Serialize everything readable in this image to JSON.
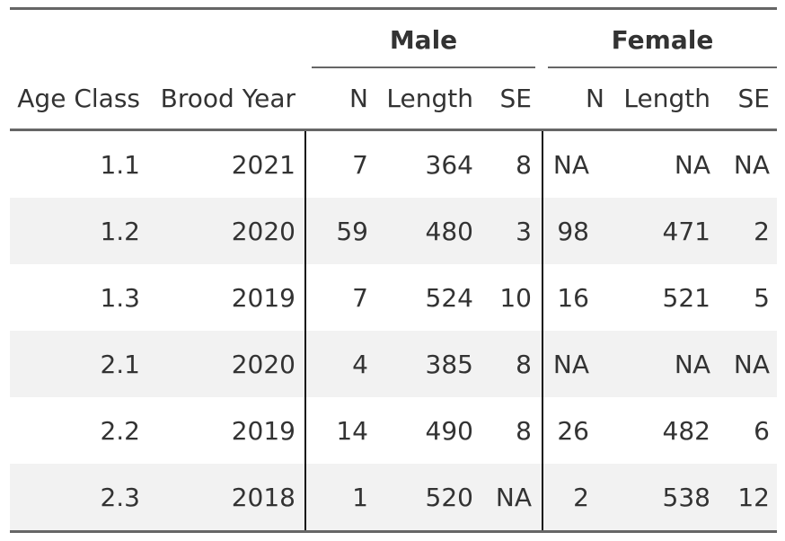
{
  "table": {
    "spanners": {
      "male": "Male",
      "female": "Female"
    },
    "headers": {
      "age_class": "Age Class",
      "brood_year": "Brood Year",
      "male_n": "N",
      "male_length": "Length",
      "male_se": "SE",
      "female_n": "N",
      "female_length": "Length",
      "female_se": "SE"
    },
    "rows": [
      [
        "1.1",
        "2021",
        "7",
        "364",
        "8",
        "NA",
        "NA",
        "NA"
      ],
      [
        "1.2",
        "2020",
        "59",
        "480",
        "3",
        "98",
        "471",
        "2"
      ],
      [
        "1.3",
        "2019",
        "7",
        "524",
        "10",
        "16",
        "521",
        "5"
      ],
      [
        "2.1",
        "2020",
        "4",
        "385",
        "8",
        "NA",
        "NA",
        "NA"
      ],
      [
        "2.2",
        "2019",
        "14",
        "490",
        "8",
        "26",
        "482",
        "6"
      ],
      [
        "2.3",
        "2018",
        "1",
        "520",
        "NA",
        "2",
        "538",
        "12"
      ]
    ]
  }
}
